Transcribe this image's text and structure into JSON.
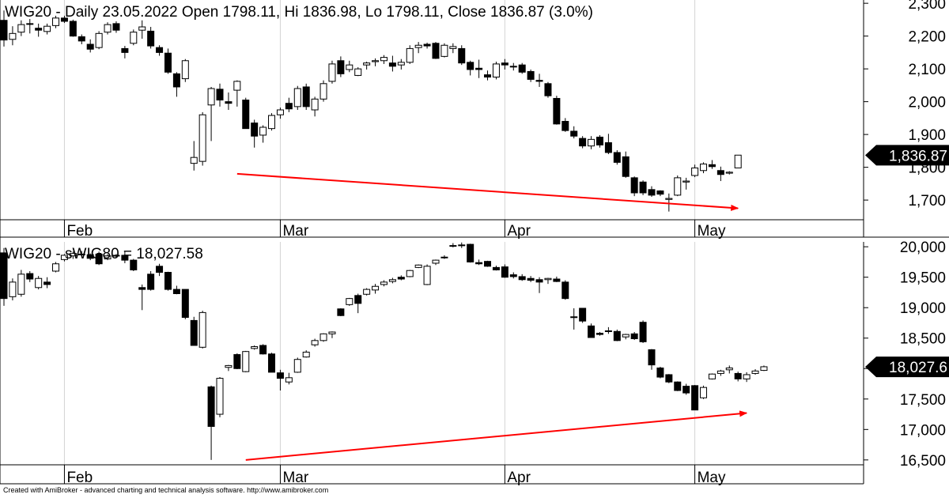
{
  "footer": {
    "credit": "Created with AmiBroker - advanced charting and technical analysis software. http://www.amibroker.com"
  },
  "colors": {
    "up": "#ffffff",
    "down": "#000000",
    "arrow": "#ff0000",
    "grid": "#d4d4d4",
    "axis": "#000000"
  },
  "chart_data": [
    {
      "type": "candlestick",
      "title": "WIG20 - Daily 23.05.2022 Open 1798.11, Hi 1836.98, Lo 1798.11, Close 1836.87 (3.0%)",
      "last_value_label": "1,836.87",
      "last_value": 1836.87,
      "ylim": [
        1640,
        2310
      ],
      "y_ticks": [
        1700,
        1800,
        1900,
        2000,
        2100,
        2200,
        2300
      ],
      "y_tick_labels": [
        "1,700",
        "1,800",
        "1,900",
        "2,000",
        "2,100",
        "2,200",
        "2,300"
      ],
      "x_tick_labels": [
        "Feb",
        "Mar",
        "Apr",
        "May"
      ],
      "x_tick_index": [
        7,
        32,
        58,
        80
      ],
      "trendline": {
        "from": {
          "index": 27,
          "value": 1780
        },
        "to": {
          "index": 85,
          "value": 1675
        }
      },
      "candles": [
        [
          2248,
          2278,
          2168,
          2188
        ],
        [
          2190,
          2230,
          2172,
          2208
        ],
        [
          2212,
          2248,
          2200,
          2235
        ],
        [
          2238,
          2252,
          2208,
          2238
        ],
        [
          2224,
          2238,
          2198,
          2218
        ],
        [
          2214,
          2238,
          2205,
          2230
        ],
        [
          2232,
          2262,
          2224,
          2255
        ],
        [
          2255,
          2262,
          2240,
          2245
        ],
        [
          2245,
          2250,
          2198,
          2200
        ],
        [
          2198,
          2205,
          2175,
          2185
        ],
        [
          2175,
          2190,
          2150,
          2160
        ],
        [
          2165,
          2215,
          2160,
          2208
        ],
        [
          2212,
          2242,
          2205,
          2235
        ],
        [
          2238,
          2245,
          2210,
          2218
        ],
        [
          2162,
          2170,
          2132,
          2150
        ],
        [
          2178,
          2220,
          2172,
          2212
        ],
        [
          2218,
          2248,
          2192,
          2228
        ],
        [
          2215,
          2228,
          2162,
          2170
        ],
        [
          2165,
          2172,
          2140,
          2150
        ],
        [
          2148,
          2162,
          2085,
          2090
        ],
        [
          2085,
          2090,
          2015,
          2045
        ],
        [
          2070,
          2130,
          2060,
          2125
        ],
        [
          1812,
          1880,
          1790,
          1830
        ],
        [
          1818,
          1968,
          1805,
          1960
        ],
        [
          1990,
          2045,
          1880,
          2040
        ],
        [
          2038,
          2055,
          1985,
          2005
        ],
        [
          2000,
          2028,
          1975,
          1995
        ],
        [
          2035,
          2065,
          1985,
          2062
        ],
        [
          2005,
          2012,
          1920,
          1918
        ],
        [
          1935,
          1945,
          1860,
          1895
        ],
        [
          1898,
          1928,
          1875,
          1922
        ],
        [
          1918,
          1965,
          1912,
          1958
        ],
        [
          1960,
          1982,
          1948,
          1975
        ],
        [
          1995,
          2012,
          1968,
          1978
        ],
        [
          1985,
          2048,
          1975,
          2040
        ],
        [
          2045,
          2055,
          1975,
          1985
        ],
        [
          1975,
          2015,
          1955,
          2008
        ],
        [
          2008,
          2065,
          2000,
          2055
        ],
        [
          2062,
          2125,
          2055,
          2115
        ],
        [
          2125,
          2138,
          2075,
          2085
        ],
        [
          2098,
          2125,
          2090,
          2112
        ],
        [
          2080,
          2105,
          2078,
          2100
        ],
        [
          2112,
          2122,
          2098,
          2118
        ],
        [
          2122,
          2132,
          2108,
          2125
        ],
        [
          2125,
          2142,
          2115,
          2135
        ],
        [
          2118,
          2140,
          2092,
          2108
        ],
        [
          2112,
          2130,
          2098,
          2120
        ],
        [
          2120,
          2172,
          2115,
          2162
        ],
        [
          2165,
          2182,
          2148,
          2172
        ],
        [
          2175,
          2180,
          2162,
          2170
        ],
        [
          2178,
          2182,
          2130,
          2132
        ],
        [
          2138,
          2178,
          2135,
          2172
        ],
        [
          2162,
          2178,
          2148,
          2168
        ],
        [
          2162,
          2172,
          2112,
          2118
        ],
        [
          2120,
          2125,
          2080,
          2098
        ],
        [
          2102,
          2128,
          2072,
          2098
        ],
        [
          2082,
          2095,
          2065,
          2075
        ],
        [
          2075,
          2122,
          2068,
          2115
        ],
        [
          2118,
          2130,
          2098,
          2112
        ],
        [
          2108,
          2118,
          2095,
          2108
        ],
        [
          2112,
          2118,
          2085,
          2090
        ],
        [
          2092,
          2098,
          2060,
          2068
        ],
        [
          2065,
          2085,
          2045,
          2062
        ],
        [
          2055,
          2060,
          2012,
          2018
        ],
        [
          2010,
          2018,
          1930,
          1932
        ],
        [
          1940,
          1950,
          1908,
          1912
        ],
        [
          1910,
          1925,
          1888,
          1895
        ],
        [
          1888,
          1895,
          1858,
          1865
        ],
        [
          1865,
          1895,
          1855,
          1885
        ],
        [
          1892,
          1898,
          1860,
          1868
        ],
        [
          1875,
          1902,
          1840,
          1845
        ],
        [
          1845,
          1852,
          1808,
          1815
        ],
        [
          1832,
          1848,
          1768,
          1772
        ],
        [
          1768,
          1772,
          1712,
          1722
        ],
        [
          1755,
          1760,
          1715,
          1722
        ],
        [
          1732,
          1742,
          1710,
          1715
        ],
        [
          1728,
          1730,
          1712,
          1718
        ],
        [
          1702,
          1720,
          1665,
          1705
        ],
        [
          1715,
          1775,
          1712,
          1768
        ],
        [
          1755,
          1768,
          1732,
          1758
        ],
        [
          1775,
          1808,
          1770,
          1798
        ],
        [
          1790,
          1815,
          1782,
          1810
        ],
        [
          1808,
          1822,
          1795,
          1802
        ],
        [
          1790,
          1802,
          1758,
          1778
        ],
        [
          1782,
          1788,
          1778,
          1785
        ],
        [
          1798,
          1837,
          1798,
          1837
        ]
      ]
    },
    {
      "type": "candlestick",
      "title": "WIG20 - sWIG80 = 18,027.58",
      "last_value_label": "18,027.6",
      "last_value": 18027.58,
      "ylim": [
        16420,
        20080
      ],
      "y_ticks": [
        16500,
        17000,
        17500,
        18000,
        18500,
        19000,
        19500,
        20000
      ],
      "y_tick_labels": [
        "16,500",
        "17,000",
        "17,500",
        "18,000",
        "18,500",
        "19,000",
        "19,500",
        "20,000"
      ],
      "x_tick_labels": [
        "Feb",
        "Mar",
        "Apr",
        "May"
      ],
      "x_tick_index": [
        7,
        32,
        58,
        80
      ],
      "trendline": {
        "from": {
          "index": 28,
          "value": 16500
        },
        "to": {
          "index": 86,
          "value": 17270
        }
      },
      "candles": [
        [
          19900,
          19980,
          19030,
          19150
        ],
        [
          19180,
          19480,
          19120,
          19420
        ],
        [
          19220,
          19620,
          19180,
          19550
        ],
        [
          19560,
          19600,
          19420,
          19470
        ],
        [
          19330,
          19520,
          19300,
          19480
        ],
        [
          19420,
          19500,
          19320,
          19380
        ],
        [
          19600,
          19750,
          19580,
          19720
        ],
        [
          19790,
          19880,
          19760,
          19860
        ],
        [
          19850,
          19920,
          19800,
          19890
        ],
        [
          19880,
          19930,
          19840,
          19870
        ],
        [
          19870,
          19890,
          19780,
          19810
        ],
        [
          19880,
          19920,
          19700,
          19720
        ],
        [
          19800,
          19880,
          19780,
          19850
        ],
        [
          19850,
          19880,
          19820,
          19860
        ],
        [
          19860,
          19920,
          19730,
          19780
        ],
        [
          19780,
          19800,
          19600,
          19620
        ],
        [
          19330,
          19380,
          18960,
          19300
        ],
        [
          19550,
          19600,
          19280,
          19300
        ],
        [
          19680,
          19720,
          19520,
          19580
        ],
        [
          19580,
          19590,
          19280,
          19300
        ],
        [
          19300,
          19360,
          19220,
          19230
        ],
        [
          19300,
          19300,
          18810,
          18840
        ],
        [
          18790,
          18850,
          18380,
          18380
        ],
        [
          18350,
          18950,
          18330,
          18920
        ],
        [
          17700,
          17720,
          16500,
          17050
        ],
        [
          17250,
          17860,
          17200,
          17840
        ],
        [
          18020,
          18060,
          17960,
          18050
        ],
        [
          18230,
          18250,
          17990,
          18000
        ],
        [
          17950,
          18290,
          17940,
          18280
        ],
        [
          18330,
          18380,
          18310,
          18360
        ],
        [
          18380,
          18400,
          18230,
          18240
        ],
        [
          18240,
          18260,
          17940,
          17940
        ],
        [
          17930,
          17980,
          17640,
          17840
        ],
        [
          17780,
          17930,
          17740,
          17850
        ],
        [
          17940,
          18180,
          17930,
          18150
        ],
        [
          18190,
          18300,
          18180,
          18270
        ],
        [
          18390,
          18490,
          18360,
          18460
        ],
        [
          18460,
          18580,
          18440,
          18570
        ],
        [
          18570,
          18610,
          18500,
          18600
        ],
        [
          18980,
          18990,
          18860,
          18870
        ],
        [
          19050,
          19160,
          19030,
          19150
        ],
        [
          19200,
          19230,
          18910,
          19070
        ],
        [
          19220,
          19320,
          19200,
          19300
        ],
        [
          19290,
          19390,
          19230,
          19350
        ],
        [
          19380,
          19450,
          19350,
          19420
        ],
        [
          19430,
          19490,
          19400,
          19460
        ],
        [
          19500,
          19530,
          19450,
          19470
        ],
        [
          19510,
          19620,
          19500,
          19610
        ],
        [
          19660,
          19710,
          19650,
          19700
        ],
        [
          19380,
          19710,
          19370,
          19680
        ],
        [
          19730,
          19790,
          19700,
          19780
        ],
        [
          19820,
          19860,
          19800,
          19830
        ],
        [
          20020,
          20060,
          19990,
          20020
        ],
        [
          20020,
          20070,
          19980,
          20030
        ],
        [
          20040,
          20050,
          19740,
          19750
        ],
        [
          19740,
          19790,
          19700,
          19720
        ],
        [
          19760,
          19770,
          19670,
          19680
        ],
        [
          19660,
          19690,
          19610,
          19620
        ],
        [
          19670,
          19710,
          19490,
          19500
        ],
        [
          19540,
          19580,
          19480,
          19510
        ],
        [
          19510,
          19550,
          19440,
          19460
        ],
        [
          19480,
          19520,
          19420,
          19450
        ],
        [
          19460,
          19500,
          19240,
          19420
        ],
        [
          19460,
          19490,
          19390,
          19480
        ],
        [
          19470,
          19510,
          19420,
          19430
        ],
        [
          19420,
          19450,
          19130,
          19150
        ],
        [
          18840,
          18990,
          18640,
          18850
        ],
        [
          18990,
          18990,
          18750,
          18780
        ],
        [
          18700,
          18740,
          18510,
          18510
        ],
        [
          18580,
          18600,
          18540,
          18560
        ],
        [
          18620,
          18680,
          18570,
          18620
        ],
        [
          18610,
          18640,
          18450,
          18460
        ],
        [
          18520,
          18570,
          18480,
          18560
        ],
        [
          18570,
          18600,
          18470,
          18490
        ],
        [
          18760,
          18790,
          18420,
          18440
        ],
        [
          18310,
          18320,
          17980,
          18060
        ],
        [
          18010,
          18030,
          17840,
          17860
        ],
        [
          17900,
          17910,
          17760,
          17780
        ],
        [
          17780,
          17790,
          17630,
          17640
        ],
        [
          17710,
          17750,
          17570,
          17600
        ],
        [
          17720,
          17730,
          17320,
          17320
        ],
        [
          17520,
          17720,
          17500,
          17690
        ],
        [
          17830,
          17920,
          17820,
          17910
        ],
        [
          17920,
          17980,
          17880,
          17960
        ],
        [
          17980,
          18050,
          17920,
          18010
        ],
        [
          17920,
          17950,
          17790,
          17830
        ],
        [
          17830,
          17940,
          17780,
          17900
        ],
        [
          17920,
          17990,
          17900,
          17960
        ],
        [
          17970,
          18050,
          17960,
          18030
        ]
      ]
    }
  ]
}
